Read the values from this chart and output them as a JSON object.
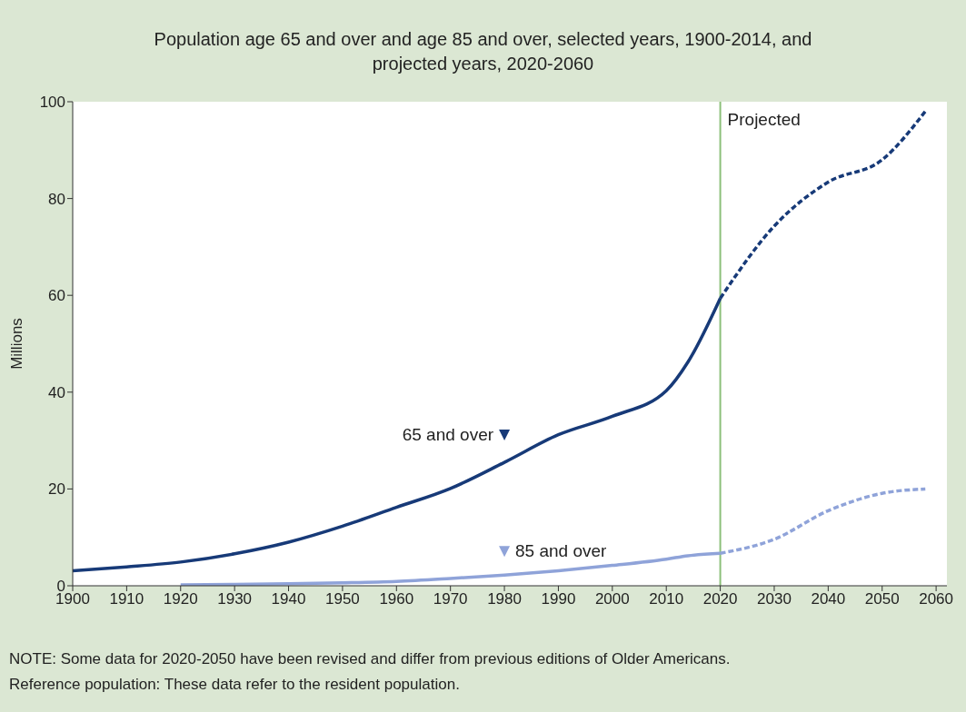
{
  "chart_data": {
    "type": "line",
    "title": "Population age 65 and over and age 85 and over, selected years, 1900-2014, and\nprojected years, 2020-2060",
    "ylabel": "Millions",
    "series": [
      {
        "name": "65 and over",
        "color": "#173a78",
        "line_style": "solid",
        "x": [
          1900,
          1910,
          1920,
          1930,
          1940,
          1950,
          1960,
          1970,
          1980,
          1990,
          2000,
          2010,
          2014,
          2020
        ],
        "values": [
          3.1,
          3.9,
          4.9,
          6.6,
          9.0,
          12.3,
          16.2,
          20.1,
          25.5,
          31.2,
          35.0,
          40.3,
          46.2,
          59.4
        ]
      },
      {
        "name": "85 and over",
        "color": "#8fa3d9",
        "line_style": "solid",
        "x": [
          1920,
          1930,
          1940,
          1950,
          1960,
          1970,
          1980,
          1990,
          2000,
          2010,
          2014,
          2020
        ],
        "values": [
          0.2,
          0.3,
          0.4,
          0.6,
          0.9,
          1.5,
          2.2,
          3.1,
          4.2,
          5.5,
          6.2,
          6.7
        ]
      },
      {
        "color": "#173a78",
        "line_style": "dashed",
        "x": [
          2020,
          2030,
          2040,
          2050,
          2058
        ],
        "values": [
          59.4,
          74.3,
          83.4,
          88.0,
          98.0
        ]
      },
      {
        "color": "#8fa3d9",
        "line_style": "dashed",
        "x": [
          2020,
          2030,
          2040,
          2050,
          2058
        ],
        "values": [
          6.7,
          9.6,
          15.5,
          19.1,
          20.0
        ]
      }
    ],
    "xlim": [
      1900,
      2062
    ],
    "xticks": [
      1900,
      1910,
      1920,
      1930,
      1940,
      1950,
      1960,
      1970,
      1980,
      1990,
      2000,
      2010,
      2020,
      2030,
      2040,
      2050,
      2060
    ],
    "ylim": [
      0,
      100
    ],
    "yticks": [
      0,
      20,
      40,
      60,
      80,
      100
    ],
    "marker": "none",
    "ref_lines": [
      {
        "axis": "x",
        "value": 2020,
        "label": "Projected",
        "color": "#8cc07a"
      }
    ],
    "annotations": [
      "NOTE: Some data for 2020-2050 have been revised and differ from previous editions of Older Americans.",
      "Reference population: These data refer to the resident population."
    ]
  }
}
